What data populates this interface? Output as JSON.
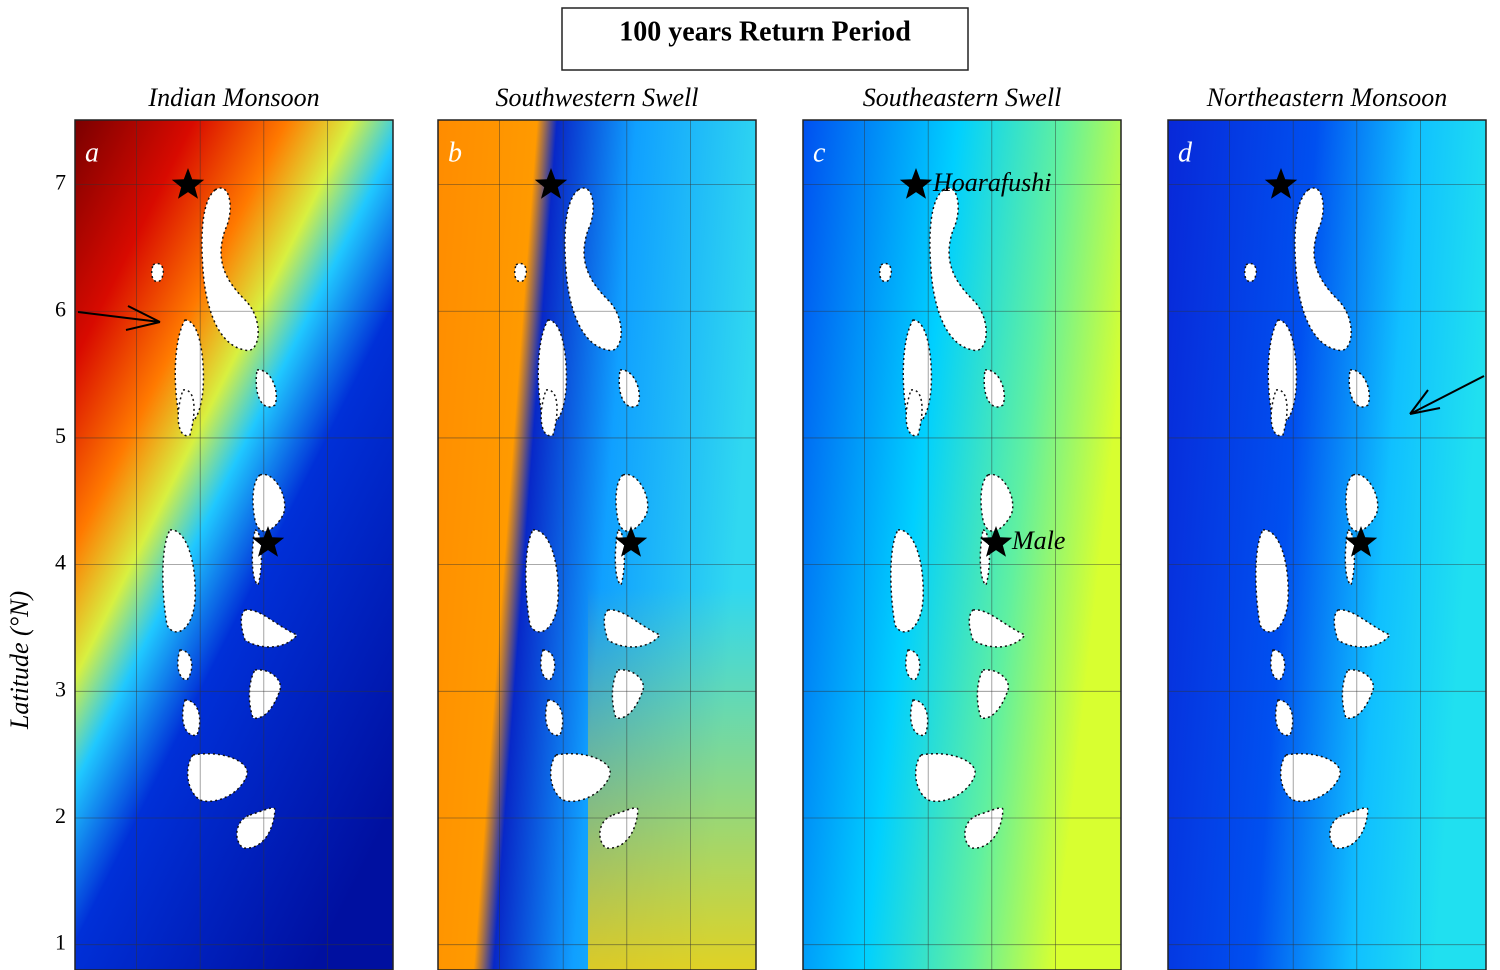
{
  "title": "100 years Return Period",
  "y_axis": {
    "label": "Latitude (°N)",
    "lim": [
      0.8,
      7.51
    ],
    "ticks": [
      1,
      2,
      3,
      4,
      5,
      6,
      7
    ]
  },
  "panels": [
    {
      "letter": "a",
      "title": "Indian Monsoon"
    },
    {
      "letter": "b",
      "title": "Southwestern Swell"
    },
    {
      "letter": "c",
      "title": "Southeastern Swell"
    },
    {
      "letter": "d",
      "title": "Northeastern Monsoon"
    }
  ],
  "annotations": [
    "Hoarafushi",
    "Male"
  ]
}
